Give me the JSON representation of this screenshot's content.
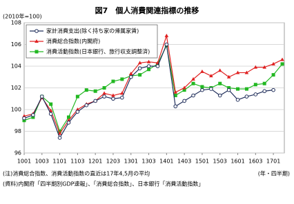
{
  "chart_data": {
    "type": "line",
    "title": "図7　個人消費関連指標の推移",
    "y_label": "(2010年=100)",
    "x_label": "(年・四半期)",
    "note": "(注)消費総合指数、消費活動指数の直近は17年4,5月の平均",
    "source": "(資料)内閣府「四半期別GDP速報」、「消費総合指数」、日本銀行「消費活動指数」",
    "categories": [
      "1001",
      null,
      "1003",
      null,
      "1101",
      null,
      "1103",
      null,
      "1201",
      null,
      "1203",
      null,
      "1301",
      null,
      "1303",
      null,
      "1401",
      null,
      "1403",
      null,
      "1501",
      null,
      "1503",
      null,
      "1601",
      null,
      "1603",
      null,
      "1701",
      null
    ],
    "ylim": [
      96,
      108
    ],
    "yticks": [
      96,
      98,
      100,
      102,
      104,
      106,
      108
    ],
    "grid": true,
    "legend": "upper-left",
    "series": [
      {
        "name": "家計消費支出(除く持ち家の帰属家賃)",
        "color": "#1f2d5a",
        "marker": "circle",
        "values": [
          99.2,
          99.5,
          101.2,
          99.6,
          97.4,
          98.8,
          99.8,
          100.4,
          100.8,
          101.2,
          101.0,
          101.1,
          103.0,
          103.8,
          104.0,
          104.0,
          106.0,
          100.3,
          100.8,
          101.3,
          101.8,
          101.9,
          101.3,
          101.8,
          100.9,
          101.2,
          101.4,
          101.7,
          101.8,
          null
        ]
      },
      {
        "name": "消費総合指数(内閣府)",
        "color": "#e02020",
        "marker": "triangle",
        "values": [
          99.4,
          99.6,
          101.1,
          99.9,
          97.8,
          99.0,
          100.0,
          100.5,
          100.8,
          101.5,
          101.3,
          101.5,
          103.3,
          104.3,
          104.4,
          104.3,
          106.8,
          101.6,
          102.0,
          102.8,
          103.5,
          103.1,
          103.6,
          103.0,
          103.4,
          103.4,
          103.9,
          103.9,
          104.2,
          104.6
        ]
      },
      {
        "name": "消費活動指数(日本銀行、旅行収支調整済)",
        "color": "#22b822",
        "marker": "square",
        "values": [
          99.0,
          99.3,
          101.2,
          100.5,
          98.0,
          99.3,
          101.2,
          101.8,
          101.7,
          102.0,
          102.6,
          102.8,
          103.1,
          103.2,
          103.7,
          104.2,
          105.9,
          101.3,
          101.8,
          102.4,
          102.1,
          102.0,
          102.4,
          102.0,
          101.9,
          101.9,
          102.3,
          102.4,
          103.2,
          104.2
        ]
      }
    ]
  }
}
